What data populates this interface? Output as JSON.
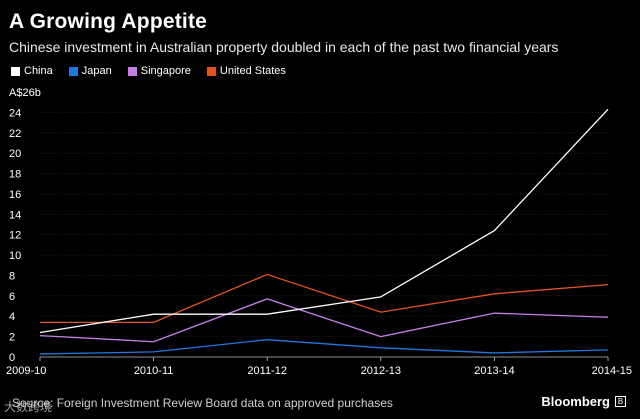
{
  "title": "A Growing Appetite",
  "subtitle": "Chinese investment in Australian property doubled in each of the past two financial years",
  "source": "Source: Foreign Investment Review Board data on approved purchases",
  "watermark": "大数跨境",
  "brand": "Bloomberg",
  "brand_mark": "B",
  "colors": {
    "background": "#000000",
    "China": "#ffffff",
    "Japan": "#1f77e0",
    "Singapore": "#c77ee8",
    "United States": "#e2531f",
    "grid": "#3a3a3a"
  },
  "chart_data": {
    "type": "line",
    "title": "A Growing Appetite",
    "subtitle": "Chinese investment in Australian property doubled in each of the past two financial years",
    "xlabel": "",
    "ylabel": "A$26b",
    "categories": [
      "2009-10",
      "2010-11",
      "2011-12",
      "2012-13",
      "2013-14",
      "2014-15"
    ],
    "ylim": [
      0,
      26
    ],
    "yticks": [
      0,
      2,
      4,
      6,
      8,
      10,
      12,
      14,
      16,
      18,
      20,
      22,
      24
    ],
    "ytick_labels": [
      "0",
      "2",
      "4",
      "6",
      "8",
      "10",
      "12",
      "14",
      "16",
      "18",
      "20",
      "22",
      "24"
    ],
    "top_label": "A$26b",
    "legend_position": "top-left",
    "grid": true,
    "series": [
      {
        "name": "China",
        "values": [
          2.4,
          4.2,
          4.2,
          5.9,
          12.4,
          24.3
        ]
      },
      {
        "name": "Japan",
        "values": [
          0.3,
          0.5,
          1.7,
          0.9,
          0.4,
          0.7
        ]
      },
      {
        "name": "Singapore",
        "values": [
          2.1,
          1.5,
          5.7,
          2.0,
          4.3,
          3.9
        ]
      },
      {
        "name": "United States",
        "values": [
          3.4,
          3.4,
          8.1,
          4.4,
          6.2,
          7.1
        ]
      }
    ]
  }
}
